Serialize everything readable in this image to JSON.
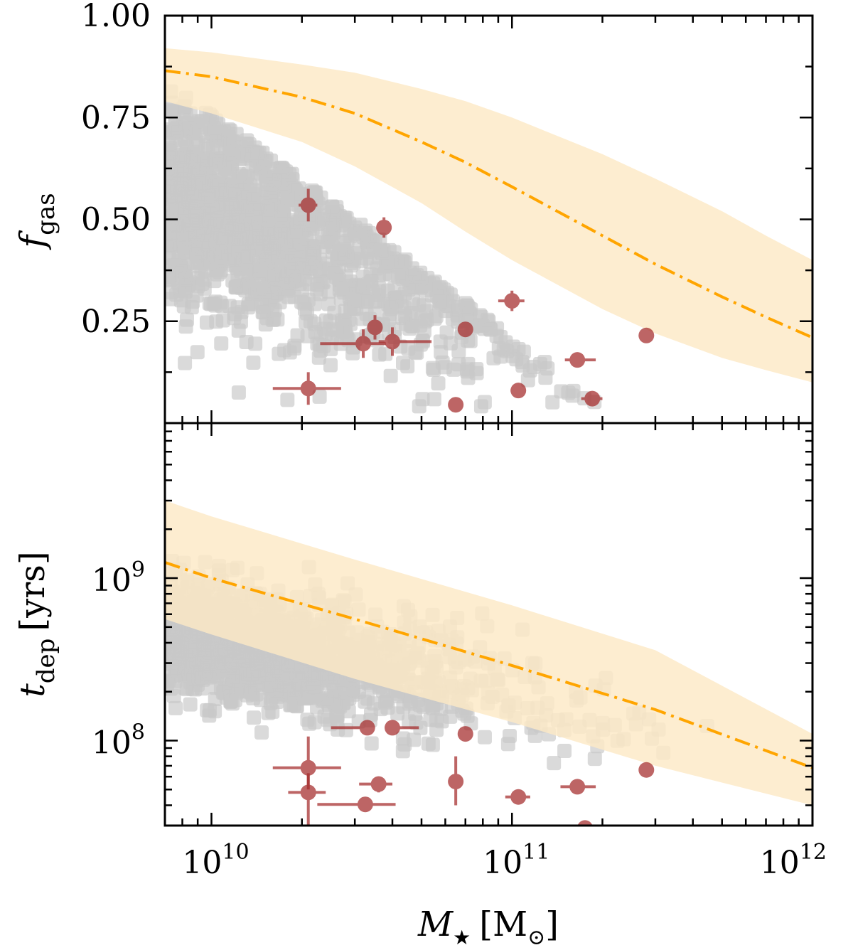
{
  "chart_data": [
    {
      "type": "scatter",
      "panel": "top",
      "ylabel": "f",
      "ylabel_sub": "gas",
      "xscale": "log",
      "yscale": "linear",
      "xlim": [
        7000000000.0,
        1000000000000.0
      ],
      "ylim": [
        0.0,
        1.0
      ],
      "yticks": [
        0.25,
        0.5,
        0.75,
        1.0
      ],
      "ytick_labels": [
        "0.25",
        "0.50",
        "0.75",
        "1.00"
      ],
      "colors": {
        "sim": "#c8c8c8",
        "band": "#fde9c6",
        "model_line": "#ffa500",
        "obs": "#a52a2a"
      },
      "model_band": {
        "x": [
          7000000000.0,
          10000000000.0,
          20000000000.0,
          30000000000.0,
          50000000000.0,
          70000000000.0,
          100000000000.0,
          200000000000.0,
          300000000000.0,
          500000000000.0,
          700000000000.0,
          1000000000000.0
        ],
        "lower": [
          0.79,
          0.76,
          0.69,
          0.63,
          0.54,
          0.47,
          0.4,
          0.28,
          0.22,
          0.16,
          0.13,
          0.1
        ],
        "upper": [
          0.92,
          0.91,
          0.88,
          0.86,
          0.82,
          0.79,
          0.75,
          0.66,
          0.6,
          0.52,
          0.46,
          0.4
        ]
      },
      "model_line": {
        "x": [
          7000000000.0,
          10000000000.0,
          20000000000.0,
          30000000000.0,
          50000000000.0,
          70000000000.0,
          100000000000.0,
          200000000000.0,
          300000000000.0,
          500000000000.0,
          700000000000.0,
          1000000000000.0
        ],
        "y": [
          0.865,
          0.85,
          0.8,
          0.76,
          0.69,
          0.64,
          0.58,
          0.46,
          0.39,
          0.31,
          0.26,
          0.21
        ]
      },
      "observations": [
        {
          "x": 21000000000.0,
          "y": 0.535,
          "xerr": [
            1500000000.0,
            1500000000.0
          ],
          "yerr": [
            0.04,
            0.04
          ]
        },
        {
          "x": 37500000000.0,
          "y": 0.48,
          "xerr": [
            1000000000.0,
            1000000000.0
          ],
          "yerr": [
            0.025,
            0.025
          ]
        },
        {
          "x": 35000000000.0,
          "y": 0.235,
          "xerr": [
            2000000000.0,
            2000000000.0
          ],
          "yerr": [
            0.03,
            0.03
          ]
        },
        {
          "x": 32000000000.0,
          "y": 0.195,
          "xerr": [
            9000000000.0,
            6000000000.0
          ],
          "yerr": [
            0.035,
            0.035
          ]
        },
        {
          "x": 40000000000.0,
          "y": 0.2,
          "xerr": [
            4000000000.0,
            14000000000.0
          ],
          "yerr": [
            0.035,
            0.035
          ]
        },
        {
          "x": 100000000000.0,
          "y": 0.3,
          "xerr": [
            10000000000.0,
            10000000000.0
          ],
          "yerr": [
            0.025,
            0.025
          ]
        },
        {
          "x": 70000000000.0,
          "y": 0.23,
          "xerr": [
            3000000000.0,
            3000000000.0
          ],
          "yerr": [
            0.015,
            0.015
          ]
        },
        {
          "x": 21000000000.0,
          "y": 0.085,
          "xerr": [
            5000000000.0,
            6000000000.0
          ],
          "yerr": [
            0.04,
            0.04
          ]
        },
        {
          "x": 65000000000.0,
          "y": 0.045,
          "xerr": [
            3000000000.0,
            3000000000.0
          ],
          "yerr": [
            0.01,
            0.01
          ]
        },
        {
          "x": 105000000000.0,
          "y": 0.08,
          "xerr": [
            6000000000.0,
            6000000000.0
          ],
          "yerr": [
            0.01,
            0.01
          ]
        },
        {
          "x": 165000000000.0,
          "y": 0.155,
          "xerr": [
            15000000000.0,
            25000000000.0
          ],
          "yerr": [
            0.01,
            0.01
          ]
        },
        {
          "x": 185000000000.0,
          "y": 0.06,
          "xerr": [
            15000000000.0,
            15000000000.0
          ],
          "yerr": [
            0.008,
            0.008
          ]
        },
        {
          "x": 280000000000.0,
          "y": 0.215,
          "xerr": [
            10000000000.0,
            10000000000.0
          ],
          "yerr": [
            0.01,
            0.01
          ]
        }
      ]
    },
    {
      "type": "scatter",
      "panel": "bottom",
      "ylabel": "t",
      "ylabel_sub": "dep",
      "ylabel_unit": "[yrs]",
      "xlabel": "M",
      "xlabel_sub": "★",
      "xlabel_unit_open": "[M",
      "xlabel_unit_sub": "⊙",
      "xlabel_unit_close": "]",
      "xscale": "log",
      "yscale": "log",
      "xlim": [
        7000000000.0,
        1000000000000.0
      ],
      "ylim": [
        30000000.0,
        9000000000.0
      ],
      "xticks": [
        10000000000.0,
        100000000000.0,
        1000000000000.0
      ],
      "xtick_base": "10",
      "xtick_exponents": [
        "10",
        "11",
        "12"
      ],
      "yticks": [
        100000000.0,
        1000000000.0
      ],
      "ytick_base": "10",
      "ytick_exponents": [
        "8",
        "9"
      ],
      "model_band": {
        "x": [
          7000000000.0,
          10000000000.0,
          30000000000.0,
          100000000000.0,
          300000000000.0,
          1000000000000.0
        ],
        "lower": [
          560000000.0,
          450000000.0,
          240000000.0,
          130000000.0,
          70000000.0,
          40000000.0
        ],
        "upper": [
          3000000000.0,
          2400000000.0,
          1300000000.0,
          680000000.0,
          360000000.0,
          110000000.0
        ]
      },
      "model_line": {
        "x": [
          7000000000.0,
          10000000000.0,
          30000000000.0,
          100000000000.0,
          300000000000.0,
          1000000000000.0
        ],
        "y": [
          1250000000.0,
          1000000000.0,
          560000000.0,
          290000000.0,
          155000000.0,
          68000000.0
        ]
      },
      "observations": [
        {
          "x": 33000000000.0,
          "y": 120000000.0,
          "xerr": [
            8000000000.0,
            2000000000.0
          ],
          "yerr": [
            0.0,
            0.0
          ]
        },
        {
          "x": 40000000000.0,
          "y": 120000000.0,
          "xerr": [
            2000000000.0,
            9000000000.0
          ],
          "yerr": [
            10000000.0,
            10000000.0
          ]
        },
        {
          "x": 70000000000.0,
          "y": 110000000.0,
          "xerr": [
            2000000000.0,
            2000000000.0
          ],
          "yerr": [
            8000000.0,
            8000000.0
          ]
        },
        {
          "x": 21000000000.0,
          "y": 68000000.0,
          "xerr": [
            5000000000.0,
            6000000000.0
          ],
          "yerr": [
            18000000.0,
            38000000.0
          ]
        },
        {
          "x": 21000000000.0,
          "y": 48000000.0,
          "xerr": [
            3000000000.0,
            3000000000.0
          ],
          "yerr": [
            20000000.0,
            15000000.0
          ]
        },
        {
          "x": 32500000000.0,
          "y": 40500000.0,
          "xerr": [
            10000000000.0,
            8500000000.0
          ],
          "yerr": [
            3000000.0,
            3000000.0
          ]
        },
        {
          "x": 36000000000.0,
          "y": 54000000.0,
          "xerr": [
            5000000000.0,
            4000000000.0
          ],
          "yerr": [
            6000000.0,
            6000000.0
          ]
        },
        {
          "x": 65000000000.0,
          "y": 56000000.0,
          "xerr": [
            3000000000.0,
            3000000000.0
          ],
          "yerr": [
            16000000.0,
            24000000.0
          ]
        },
        {
          "x": 105000000000.0,
          "y": 45000000.0,
          "xerr": [
            10000000000.0,
            10000000000.0
          ],
          "yerr": [
            3000000.0,
            3000000.0
          ]
        },
        {
          "x": 165000000000.0,
          "y": 52000000.0,
          "xerr": [
            20000000000.0,
            25000000000.0
          ],
          "yerr": [
            3000000.0,
            3000000.0
          ]
        },
        {
          "x": 175000000000.0,
          "y": 29000000.0,
          "xerr": [
            0.0,
            0.0
          ],
          "yerr": [
            2000000.0,
            2000000.0
          ]
        },
        {
          "x": 280000000000.0,
          "y": 66000000.0,
          "xerr": [
            12000000000.0,
            12000000000.0
          ],
          "yerr": [
            4000000.0,
            4000000.0
          ]
        }
      ]
    }
  ]
}
